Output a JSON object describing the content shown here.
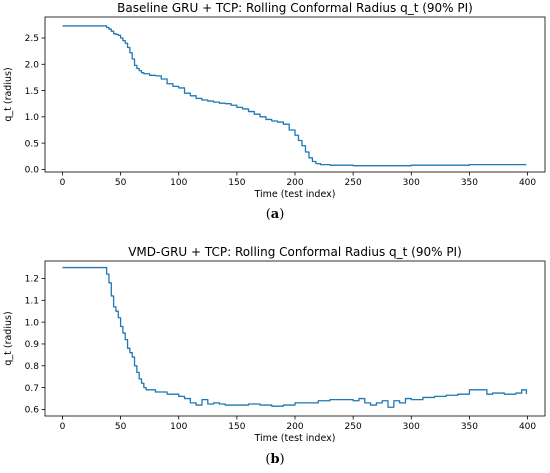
{
  "chart_data": [
    {
      "type": "line",
      "subfigure_label": "a",
      "title": "Baseline GRU + TCP: Rolling Conformal Radius q_t (90% PI)",
      "xlabel": "Time (test index)",
      "ylabel": "q_t (radius)",
      "xlim": [
        -15,
        415
      ],
      "ylim": [
        -0.05,
        2.9
      ],
      "xticks": [
        0,
        50,
        100,
        150,
        200,
        250,
        300,
        350,
        400
      ],
      "yticks": [
        0.0,
        0.5,
        1.0,
        1.5,
        2.0,
        2.5
      ],
      "ytick_labels": [
        "0.0",
        "0.5",
        "1.0",
        "1.5",
        "2.0",
        "2.5"
      ],
      "grid": false,
      "line_color": "#1f77b4",
      "series": [
        {
          "x": [
            0,
            36,
            38,
            40,
            42,
            44,
            46,
            48,
            50,
            52,
            54,
            56,
            58,
            60,
            62,
            64,
            66,
            68,
            70,
            75,
            80,
            85,
            90,
            95,
            100,
            105,
            110,
            115,
            120,
            125,
            130,
            135,
            140,
            145,
            150,
            155,
            160,
            165,
            170,
            175,
            180,
            185,
            190,
            195,
            200,
            203,
            206,
            209,
            212,
            215,
            218,
            222,
            230,
            250,
            300,
            350,
            399
          ],
          "y": [
            2.73,
            2.73,
            2.7,
            2.67,
            2.63,
            2.58,
            2.57,
            2.55,
            2.5,
            2.45,
            2.4,
            2.32,
            2.22,
            2.1,
            1.98,
            1.92,
            1.88,
            1.84,
            1.82,
            1.79,
            1.78,
            1.72,
            1.63,
            1.58,
            1.55,
            1.45,
            1.4,
            1.35,
            1.32,
            1.3,
            1.28,
            1.26,
            1.25,
            1.22,
            1.18,
            1.15,
            1.1,
            1.05,
            1.0,
            0.95,
            0.92,
            0.9,
            0.86,
            0.75,
            0.65,
            0.55,
            0.45,
            0.33,
            0.22,
            0.15,
            0.11,
            0.09,
            0.08,
            0.07,
            0.08,
            0.09,
            0.09
          ]
        }
      ]
    },
    {
      "type": "line",
      "subfigure_label": "b",
      "title": "VMD-GRU + TCP: Rolling Conformal Radius q_t (90% PI)",
      "xlabel": "Time (test index)",
      "ylabel": "q_t (radius)",
      "xlim": [
        -15,
        415
      ],
      "ylim": [
        0.57,
        1.28
      ],
      "xticks": [
        0,
        50,
        100,
        150,
        200,
        250,
        300,
        350,
        400
      ],
      "yticks": [
        0.6,
        0.7,
        0.8,
        0.9,
        1.0,
        1.1,
        1.2
      ],
      "ytick_labels": [
        "0.6",
        "0.7",
        "0.8",
        "0.9",
        "1.0",
        "1.1",
        "1.2"
      ],
      "grid": false,
      "line_color": "#1f77b4",
      "series": [
        {
          "x": [
            0,
            36,
            38,
            40,
            42,
            44,
            46,
            48,
            50,
            52,
            54,
            56,
            58,
            60,
            62,
            64,
            66,
            68,
            70,
            72,
            80,
            90,
            100,
            105,
            110,
            115,
            120,
            125,
            130,
            135,
            140,
            150,
            160,
            170,
            180,
            190,
            200,
            210,
            220,
            230,
            240,
            250,
            255,
            260,
            265,
            270,
            275,
            280,
            285,
            290,
            295,
            300,
            310,
            320,
            330,
            340,
            350,
            360,
            365,
            370,
            380,
            390,
            395,
            399
          ],
          "y": [
            1.25,
            1.25,
            1.22,
            1.18,
            1.12,
            1.07,
            1.05,
            1.02,
            0.98,
            0.95,
            0.92,
            0.88,
            0.86,
            0.84,
            0.8,
            0.77,
            0.74,
            0.72,
            0.7,
            0.69,
            0.68,
            0.67,
            0.66,
            0.65,
            0.63,
            0.62,
            0.645,
            0.625,
            0.63,
            0.625,
            0.62,
            0.62,
            0.625,
            0.62,
            0.615,
            0.62,
            0.63,
            0.63,
            0.64,
            0.645,
            0.645,
            0.64,
            0.65,
            0.63,
            0.62,
            0.63,
            0.64,
            0.61,
            0.64,
            0.63,
            0.65,
            0.645,
            0.655,
            0.66,
            0.665,
            0.67,
            0.69,
            0.69,
            0.67,
            0.675,
            0.67,
            0.675,
            0.69,
            0.67
          ]
        }
      ]
    }
  ]
}
